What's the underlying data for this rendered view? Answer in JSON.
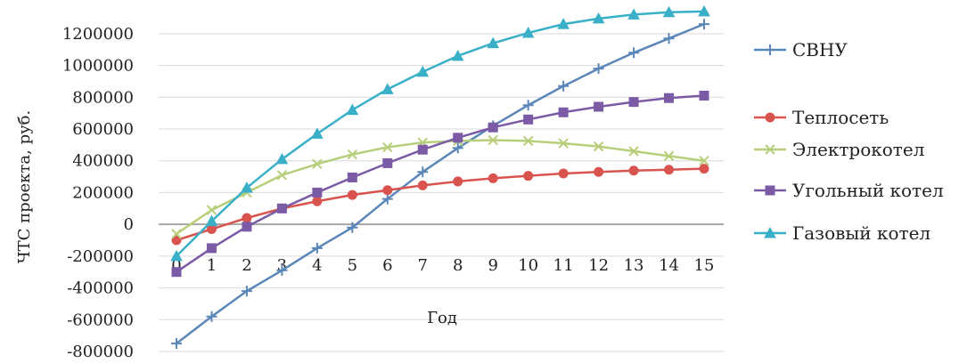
{
  "chart_data": {
    "type": "line",
    "title": "",
    "xlabel": "Год",
    "ylabel": "ЧТС проекта, руб.",
    "x": [
      0,
      1,
      2,
      3,
      4,
      5,
      6,
      7,
      8,
      9,
      10,
      11,
      12,
      13,
      14,
      15
    ],
    "x_tick_labels": [
      "0",
      "1",
      "2",
      "3",
      "4",
      "5",
      "6",
      "7",
      "8",
      "9",
      "10",
      "11",
      "12",
      "13",
      "14",
      "15"
    ],
    "y_tick_labels": [
      "1200000",
      "1000000",
      "800000",
      "600000",
      "400000",
      "200000",
      "0",
      "-200000",
      "-400000",
      "-600000",
      "-800000"
    ],
    "ylim": [
      -800000,
      1300000
    ],
    "grid": true,
    "legend_position": "right",
    "series": [
      {
        "name": "СВНУ",
        "color": "#5b86b8",
        "marker": "plus",
        "values": [
          -750000,
          -580000,
          -420000,
          -290000,
          -150000,
          -20000,
          160000,
          330000,
          480000,
          620000,
          750000,
          870000,
          980000,
          1080000,
          1170000,
          1260000
        ]
      },
      {
        "name": "Теплосеть",
        "color": "#d9534f",
        "marker": "circle",
        "values": [
          -100000,
          -30000,
          40000,
          100000,
          145000,
          185000,
          215000,
          245000,
          270000,
          290000,
          305000,
          320000,
          330000,
          338000,
          344000,
          350000
        ]
      },
      {
        "name": "Электрокотел",
        "color": "#b7cf7a",
        "marker": "x",
        "values": [
          -60000,
          90000,
          200000,
          310000,
          380000,
          440000,
          485000,
          515000,
          525000,
          530000,
          525000,
          510000,
          490000,
          460000,
          430000,
          400000
        ]
      },
      {
        "name": "Угольный котел",
        "color": "#7b5aa6",
        "marker": "square",
        "values": [
          -300000,
          -150000,
          -15000,
          100000,
          200000,
          295000,
          385000,
          470000,
          545000,
          610000,
          660000,
          705000,
          740000,
          770000,
          795000,
          810000
        ]
      },
      {
        "name": "Газовый котел",
        "color": "#3ab0c8",
        "marker": "triangle",
        "values": [
          -200000,
          20000,
          230000,
          410000,
          570000,
          720000,
          850000,
          960000,
          1060000,
          1140000,
          1205000,
          1260000,
          1295000,
          1320000,
          1335000,
          1340000
        ]
      }
    ]
  }
}
